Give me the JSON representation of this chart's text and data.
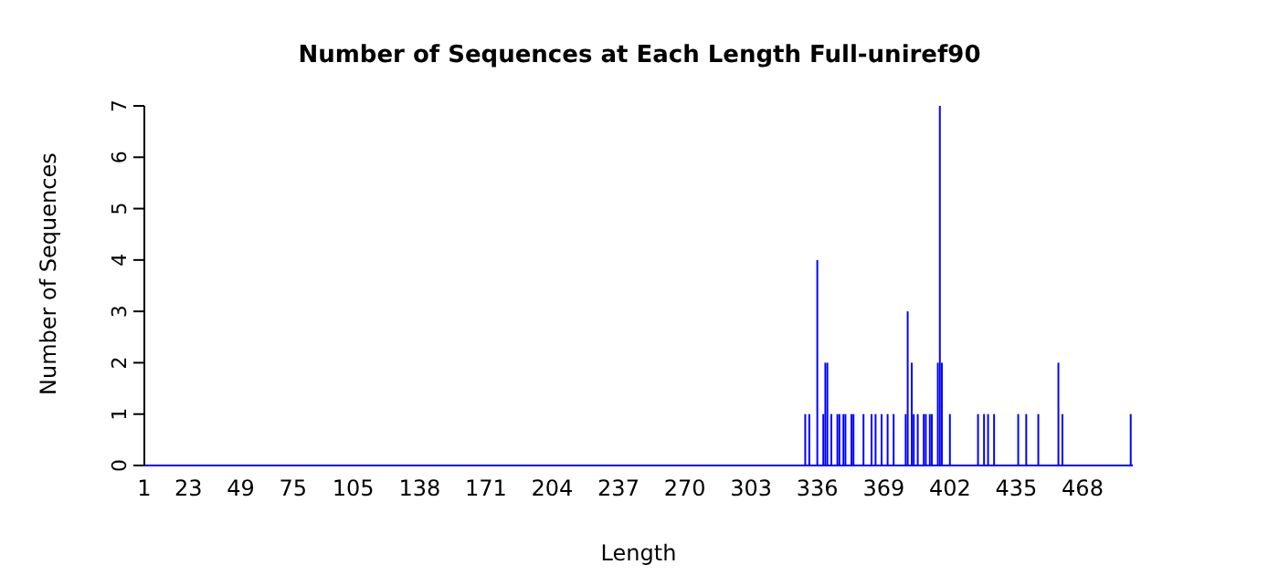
{
  "chart_data": {
    "type": "bar",
    "title": "Number of Sequences at Each Length  Full-uniref90",
    "xlabel": "Length",
    "ylabel": "Number of Sequences",
    "x": [
      330,
      332,
      336,
      339,
      340,
      341,
      343,
      346,
      347,
      349,
      350,
      353,
      354,
      359,
      363,
      365,
      368,
      371,
      374,
      380,
      381,
      383,
      384,
      386,
      389,
      390,
      392,
      393,
      396,
      397,
      398,
      402,
      416,
      419,
      421,
      424,
      436,
      440,
      446,
      456,
      458,
      492
    ],
    "values": [
      1,
      1,
      4,
      1,
      2,
      2,
      1,
      1,
      1,
      1,
      1,
      1,
      1,
      1,
      1,
      1,
      1,
      1,
      1,
      1,
      3,
      2,
      1,
      1,
      1,
      1,
      1,
      1,
      2,
      7,
      2,
      1,
      1,
      1,
      1,
      1,
      1,
      1,
      1,
      2,
      1,
      1
    ],
    "color": "#0000ff",
    "xlim": [
      1,
      493
    ],
    "xticks": [
      1,
      23,
      49,
      75,
      105,
      138,
      171,
      204,
      237,
      270,
      303,
      336,
      369,
      402,
      435,
      468
    ],
    "ylim": [
      0,
      7
    ],
    "yticks": [
      0,
      1,
      2,
      3,
      4,
      5,
      6,
      7
    ],
    "grid": false,
    "legend": false
  }
}
